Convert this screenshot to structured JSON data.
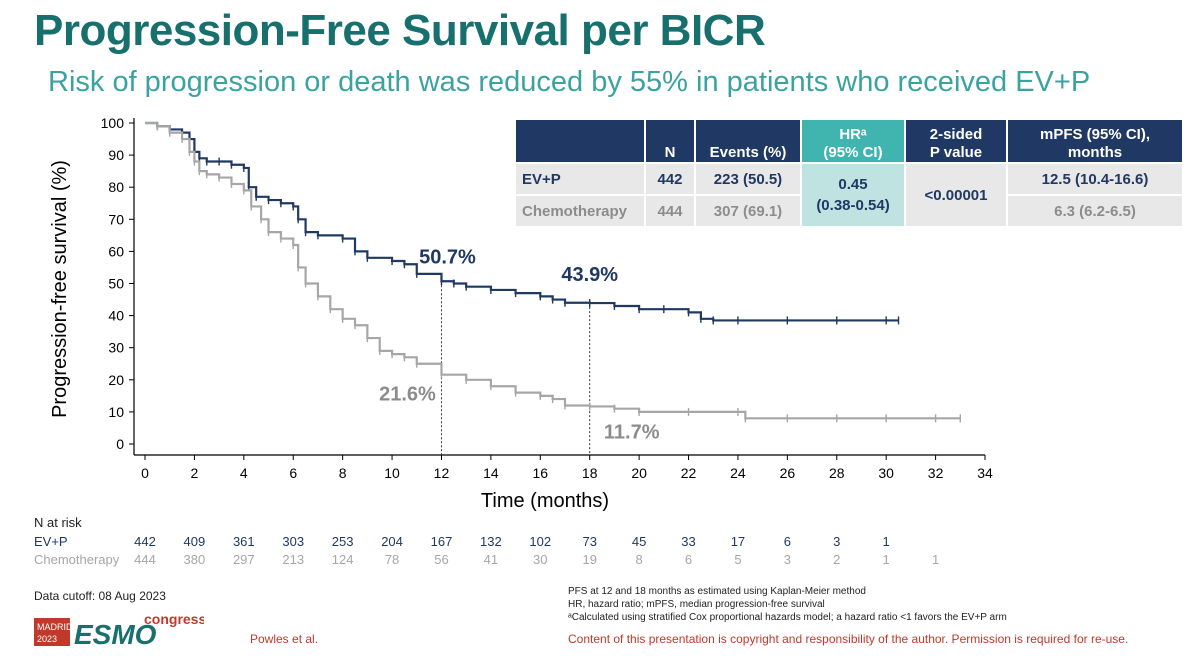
{
  "title": "Progression-Free Survival per BICR",
  "subtitle": "Risk of progression or death was reduced by 55% in patients who received EV+P",
  "colors": {
    "evp": "#1f3864",
    "chemo": "#a6a6a6",
    "teal": "#17706e",
    "hr_header": "#40b5b0",
    "red": "#c0392b"
  },
  "chart_data": {
    "type": "line",
    "xlabel": "Time (months)",
    "ylabel": "Progression-free survival (%)",
    "xlim": [
      0,
      34
    ],
    "ylim": [
      0,
      100
    ],
    "x_ticks": [
      0,
      2,
      4,
      6,
      8,
      10,
      12,
      14,
      16,
      18,
      20,
      22,
      24,
      26,
      28,
      30,
      32,
      34
    ],
    "y_ticks": [
      0,
      10,
      20,
      30,
      40,
      50,
      60,
      70,
      80,
      90,
      100
    ],
    "series": [
      {
        "name": "EV+P",
        "color": "#1f3864",
        "x": [
          0,
          0.5,
          1.0,
          1.5,
          1.8,
          2.0,
          2.2,
          2.5,
          3.0,
          3.5,
          4.0,
          4.2,
          4.5,
          5.0,
          5.5,
          6.0,
          6.2,
          6.5,
          7.0,
          8.0,
          8.5,
          9.0,
          10.0,
          10.5,
          11.0,
          12.0,
          12.5,
          13.0,
          14.0,
          15.0,
          16.0,
          16.5,
          17.0,
          18.0,
          19.0,
          20.0,
          21.0,
          22.0,
          22.5,
          23.0,
          24.0,
          26.0,
          28.0,
          30.0,
          30.5
        ],
        "y": [
          100,
          99,
          98,
          97,
          95,
          91,
          89,
          88,
          88,
          87,
          86,
          80,
          77,
          76,
          75,
          74,
          70,
          66,
          65,
          64,
          60,
          58,
          57,
          56,
          53,
          50.7,
          50,
          49,
          48,
          47,
          46,
          45,
          44,
          43.9,
          43,
          42,
          42,
          41,
          39,
          38.5,
          38.5,
          38.5,
          38.5,
          38.5,
          38.5
        ]
      },
      {
        "name": "Chemotherapy",
        "color": "#a6a6a6",
        "x": [
          0,
          0.5,
          1.0,
          1.5,
          1.8,
          2.0,
          2.2,
          2.5,
          3.0,
          3.5,
          4.0,
          4.3,
          4.7,
          5.0,
          5.5,
          6.0,
          6.2,
          6.5,
          7.0,
          7.5,
          8.0,
          8.5,
          9.0,
          9.5,
          10.0,
          10.5,
          11.0,
          12.0,
          13.0,
          14.0,
          15.0,
          16.0,
          16.5,
          17.0,
          18.0,
          19.0,
          20.0,
          22.0,
          24.0,
          24.3,
          26.0,
          28.0,
          30.0,
          32.0,
          33.0
        ],
        "y": [
          100,
          99,
          97,
          95,
          91,
          88,
          85,
          84,
          83,
          81,
          79,
          74,
          70,
          66,
          64,
          62,
          55,
          50,
          46,
          42,
          39,
          37,
          33,
          29,
          28,
          27,
          25,
          21.6,
          20,
          18,
          16,
          15,
          14,
          12,
          11.7,
          11,
          10,
          10,
          10,
          8,
          8,
          8,
          8,
          8,
          8
        ]
      }
    ],
    "annotations": [
      {
        "text": "50.7%",
        "series": "EV+P",
        "x": 12,
        "y": 50.7
      },
      {
        "text": "43.9%",
        "series": "EV+P",
        "x": 18,
        "y": 43.9
      },
      {
        "text": "21.6%",
        "series": "Chemotherapy",
        "x": 12,
        "y": 21.6
      },
      {
        "text": "11.7%",
        "series": "Chemotherapy",
        "x": 18,
        "y": 11.7
      }
    ],
    "reference_lines_x": [
      12,
      18
    ]
  },
  "table": {
    "headers": [
      "",
      "N",
      "Events (%)",
      "HRᵃ\n(95% CI)",
      "2-sided\nP value",
      "mPFS (95% CI), months"
    ],
    "rows": [
      {
        "arm": "EV+P",
        "n": "442",
        "events": "223 (50.5)",
        "mpfs": "12.5 (10.4-16.6)"
      },
      {
        "arm": "Chemotherapy",
        "n": "444",
        "events": "307 (69.1)",
        "mpfs": "6.3 (6.2-6.5)"
      }
    ],
    "hr": "0.45",
    "hr_ci": "(0.38-0.54)",
    "p_value": "<0.00001"
  },
  "risk": {
    "title": "N at risk",
    "evp_label": "EV+P",
    "chemo_label": "Chemotherapy",
    "evp": [
      "442",
      "409",
      "361",
      "303",
      "253",
      "204",
      "167",
      "132",
      "102",
      "73",
      "45",
      "33",
      "17",
      "6",
      "3",
      "1"
    ],
    "chemo": [
      "444",
      "380",
      "297",
      "213",
      "124",
      "78",
      "56",
      "41",
      "30",
      "19",
      "8",
      "6",
      "5",
      "3",
      "2",
      "1",
      "1"
    ]
  },
  "cutoff": "Data cutoff: 08 Aug 2023",
  "logo": {
    "city": "MADRID",
    "year": "2023",
    "brand": "ESMO",
    "word": "congress"
  },
  "authors": "Powles et al.",
  "footnotes": [
    "PFS at 12 and 18 months as estimated using Kaplan-Meier method",
    "HR, hazard ratio; mPFS, median progression-free survival",
    "ᵃCalculated using stratified Cox proportional hazards model; a hazard ratio <1 favors the EV+P arm"
  ],
  "copyright": "Content of this presentation is copyright and responsibility of the author. Permission is required for re-use."
}
